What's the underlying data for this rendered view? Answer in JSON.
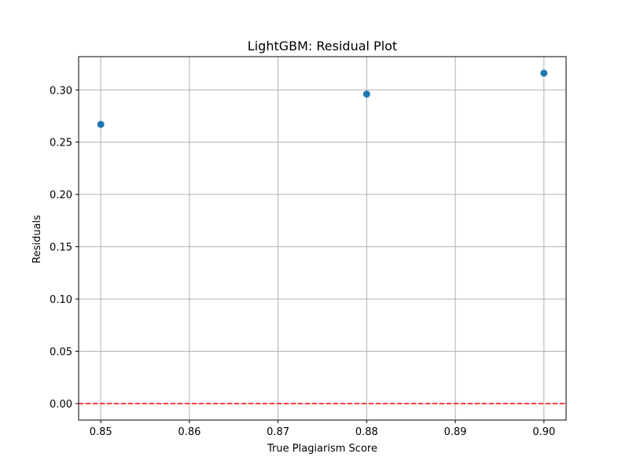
{
  "chart_data": {
    "type": "scatter",
    "title": "LightGBM: Residual Plot",
    "xlabel": "True Plagiarism Score",
    "ylabel": "Residuals",
    "xlim": [
      0.8475,
      0.9025
    ],
    "ylim": [
      -0.0158,
      0.3318
    ],
    "xticks": [
      0.85,
      0.86,
      0.87,
      0.88,
      0.89,
      0.9
    ],
    "xtick_labels": [
      "0.85",
      "0.86",
      "0.87",
      "0.88",
      "0.89",
      "0.90"
    ],
    "yticks": [
      0.0,
      0.05,
      0.1,
      0.15,
      0.2,
      0.25,
      0.3
    ],
    "ytick_labels": [
      "0.00",
      "0.05",
      "0.10",
      "0.15",
      "0.20",
      "0.25",
      "0.30"
    ],
    "grid": true,
    "series": [
      {
        "color": "#1f77b4",
        "points": [
          {
            "x": 0.85,
            "y": 0.267
          },
          {
            "x": 0.88,
            "y": 0.296
          },
          {
            "x": 0.9,
            "y": 0.316
          }
        ]
      }
    ],
    "reference_lines": [
      {
        "orientation": "horizontal",
        "y": 0,
        "color": "#ff0000",
        "style": "dashed"
      }
    ]
  }
}
